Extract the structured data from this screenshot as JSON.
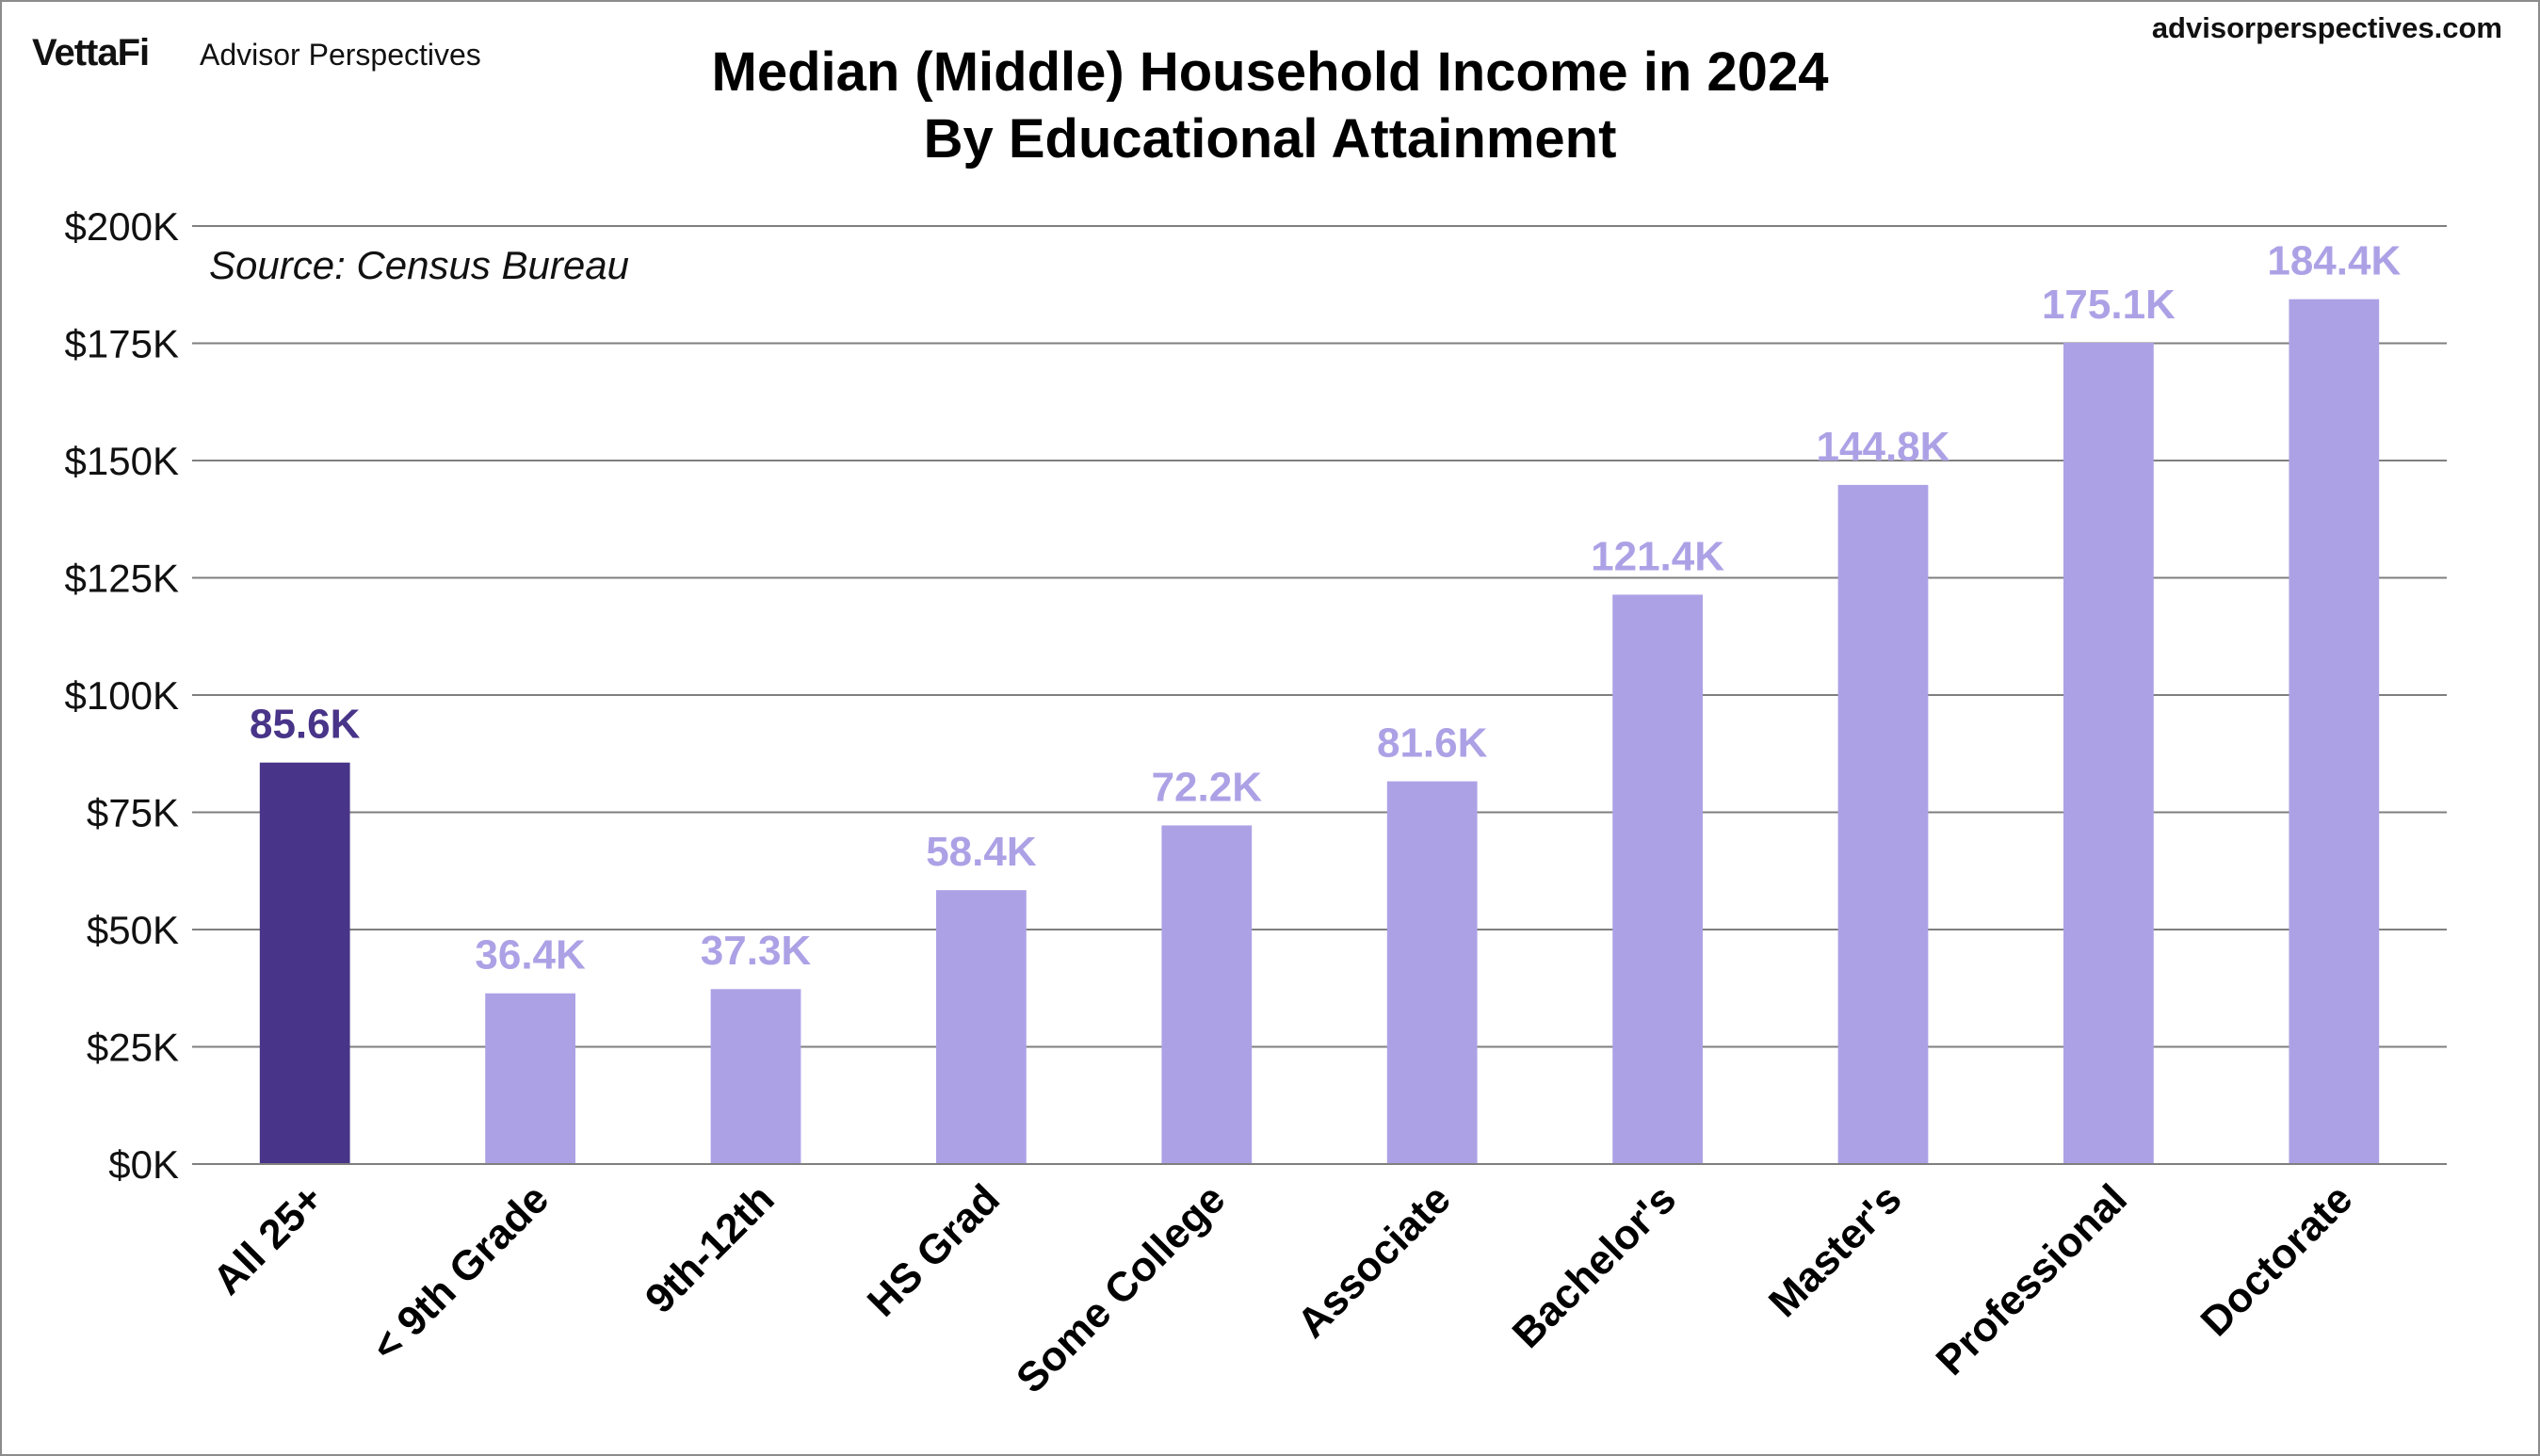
{
  "header": {
    "logo": "VettaFi",
    "brand": "Advisor Perspectives",
    "site": "advisorperspectives.com"
  },
  "chart_data": {
    "type": "bar",
    "title": "Median (Middle) Household Income in 2024",
    "subtitle": "By Educational Attainment",
    "annotation": "Source: Census Bureau",
    "categories": [
      "All 25+",
      "< 9th Grade",
      "9th-12th",
      "HS Grad",
      "Some College",
      "Associate",
      "Bachelor's",
      "Master's",
      "Professional",
      "Doctorate"
    ],
    "values": [
      85.6,
      36.4,
      37.3,
      58.4,
      72.2,
      81.6,
      121.4,
      144.8,
      175.1,
      184.4
    ],
    "value_labels": [
      "85.6K",
      "36.4K",
      "37.3K",
      "58.4K",
      "72.2K",
      "81.6K",
      "121.4K",
      "144.8K",
      "175.1K",
      "184.4K"
    ],
    "y_ticks": [
      0,
      25,
      50,
      75,
      100,
      125,
      150,
      175,
      200
    ],
    "y_tick_labels": [
      "$0K",
      "$25K",
      "$50K",
      "$75K",
      "$100K",
      "$125K",
      "$150K",
      "$175K",
      "$200K"
    ],
    "ylim": [
      0,
      200
    ],
    "grid": true,
    "legend": "none",
    "colors": {
      "highlight": "#483488",
      "bar": "#ada1e6",
      "grid": "#7f7f7f"
    }
  }
}
